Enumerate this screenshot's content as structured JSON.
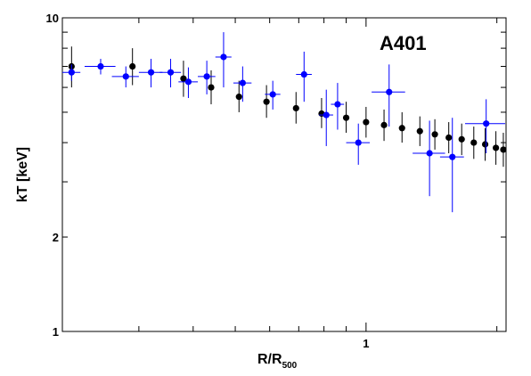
{
  "chart_data": {
    "type": "scatter",
    "title": "",
    "annotation": "A401",
    "xlabel": "R/R",
    "xlabel_sub": "500",
    "ylabel": "kT [keV]",
    "xscale": "log",
    "yscale": "log",
    "xlim": [
      0.2,
      2.1
    ],
    "ylim": [
      1,
      10
    ],
    "x_tick_labels": [
      {
        "value": 1,
        "label": "1"
      }
    ],
    "y_tick_labels": [
      {
        "value": 1,
        "label": "1"
      },
      {
        "value": 2,
        "label": "2"
      },
      {
        "value": 10,
        "label": "10"
      }
    ],
    "grid": false,
    "legend": null,
    "series": [
      {
        "color": "#000000",
        "points": [
          {
            "x": 0.21,
            "y": 7.0,
            "yerr": [
              1.0,
              1.1
            ]
          },
          {
            "x": 0.29,
            "y": 7.0,
            "yerr": [
              0.9,
              1.0
            ]
          },
          {
            "x": 0.38,
            "y": 6.4,
            "yerr": [
              0.8,
              0.9
            ]
          },
          {
            "x": 0.44,
            "y": 6.0,
            "yerr": [
              0.7,
              0.8
            ]
          },
          {
            "x": 0.51,
            "y": 5.6,
            "yerr": [
              0.6,
              0.7
            ]
          },
          {
            "x": 0.59,
            "y": 5.4,
            "yerr": [
              0.6,
              0.7
            ]
          },
          {
            "x": 0.69,
            "y": 5.15,
            "yerr": [
              0.55,
              0.65
            ]
          },
          {
            "x": 0.79,
            "y": 4.95,
            "yerr": [
              0.5,
              0.6
            ]
          },
          {
            "x": 0.9,
            "y": 4.8,
            "yerr": [
              0.5,
              0.6
            ]
          },
          {
            "x": 1.0,
            "y": 4.65,
            "yerr": [
              0.5,
              0.55
            ]
          },
          {
            "x": 1.1,
            "y": 4.55,
            "yerr": [
              0.5,
              0.55
            ]
          },
          {
            "x": 1.21,
            "y": 4.45,
            "yerr": [
              0.45,
              0.55
            ]
          },
          {
            "x": 1.33,
            "y": 4.35,
            "yerr": [
              0.45,
              0.5
            ]
          },
          {
            "x": 1.44,
            "y": 4.25,
            "yerr": [
              0.45,
              0.5
            ]
          },
          {
            "x": 1.55,
            "y": 4.15,
            "yerr": [
              0.45,
              0.5
            ]
          },
          {
            "x": 1.66,
            "y": 4.1,
            "yerr": [
              0.45,
              0.5
            ]
          },
          {
            "x": 1.77,
            "y": 4.0,
            "yerr": [
              0.45,
              0.5
            ]
          },
          {
            "x": 1.88,
            "y": 3.95,
            "yerr": [
              0.45,
              0.5
            ]
          },
          {
            "x": 1.99,
            "y": 3.85,
            "yerr": [
              0.45,
              0.5
            ]
          },
          {
            "x": 2.07,
            "y": 3.8,
            "yerr": [
              0.45,
              0.5
            ]
          }
        ]
      },
      {
        "color": "#0000ff",
        "points": [
          {
            "x": 0.21,
            "y": 6.7,
            "xerr": [
              0.01,
              0.01
            ],
            "yerr": [
              0.4,
              0.4
            ]
          },
          {
            "x": 0.245,
            "y": 7.0,
            "xerr": [
              0.02,
              0.02
            ],
            "yerr": [
              0.4,
              0.4
            ]
          },
          {
            "x": 0.28,
            "y": 6.5,
            "xerr": [
              0.02,
              0.02
            ],
            "yerr": [
              0.5,
              0.5
            ]
          },
          {
            "x": 0.32,
            "y": 6.7,
            "xerr": [
              0.02,
              0.02
            ],
            "yerr": [
              0.7,
              0.7
            ]
          },
          {
            "x": 0.355,
            "y": 6.7,
            "xerr": [
              0.02,
              0.02
            ],
            "yerr": [
              0.7,
              0.7
            ]
          },
          {
            "x": 0.39,
            "y": 6.25,
            "xerr": [
              0.02,
              0.02
            ],
            "yerr": [
              0.7,
              0.7
            ]
          },
          {
            "x": 0.43,
            "y": 6.5,
            "xerr": [
              0.02,
              0.02
            ],
            "yerr": [
              0.8,
              0.8
            ]
          },
          {
            "x": 0.47,
            "y": 7.5,
            "xerr": [
              0.02,
              0.02
            ],
            "yerr": [
              1.5,
              1.5
            ]
          },
          {
            "x": 0.52,
            "y": 6.2,
            "xerr": [
              0.025,
              0.025
            ],
            "yerr": [
              0.8,
              0.8
            ]
          },
          {
            "x": 0.61,
            "y": 5.7,
            "xerr": [
              0.025,
              0.025
            ],
            "yerr": [
              0.6,
              0.6
            ]
          },
          {
            "x": 0.72,
            "y": 6.6,
            "xerr": [
              0.03,
              0.03
            ],
            "yerr": [
              1.2,
              1.2
            ]
          },
          {
            "x": 0.81,
            "y": 4.9,
            "xerr": [
              0.03,
              0.03
            ],
            "yerr": [
              1.0,
              1.0
            ]
          },
          {
            "x": 0.86,
            "y": 5.3,
            "xerr": [
              0.03,
              0.03
            ],
            "yerr": [
              0.9,
              0.9
            ]
          },
          {
            "x": 0.96,
            "y": 4.0,
            "xerr": [
              0.06,
              0.06
            ],
            "yerr": [
              0.6,
              0.6
            ]
          },
          {
            "x": 1.13,
            "y": 5.8,
            "xerr": [
              0.1,
              0.1
            ],
            "yerr": [
              1.3,
              1.3
            ]
          },
          {
            "x": 1.4,
            "y": 3.7,
            "xerr": [
              0.12,
              0.12
            ],
            "yerr": [
              1.0,
              1.0
            ]
          },
          {
            "x": 1.58,
            "y": 3.6,
            "xerr": [
              0.1,
              0.1
            ],
            "yerr": [
              1.2,
              1.2
            ]
          },
          {
            "x": 1.89,
            "y": 4.6,
            "xerr": [
              0.2,
              0.2
            ],
            "yerr": [
              0.9,
              0.9
            ]
          }
        ]
      }
    ]
  }
}
